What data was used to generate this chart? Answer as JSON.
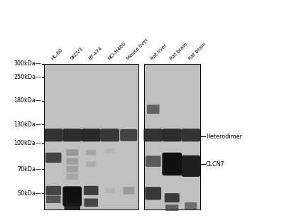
{
  "fig_bg": "#ffffff",
  "panel_bg": "#bebebe",
  "lane_labels": [
    "HL-60",
    "SKOV3",
    "BT-474",
    "NCI-H460",
    "Mouse liver",
    "Rat liver",
    "Rat brain",
    "Rat brain"
  ],
  "mw_markers": [
    "300kDa—",
    "250kDa—",
    "180kDa—",
    "130kDa—",
    "100kDa—",
    "70kDa—",
    "50kDa—"
  ],
  "mw_values": [
    300,
    250,
    180,
    130,
    100,
    70,
    50
  ],
  "annotations": [
    "Heterodimer",
    "CLCN7"
  ],
  "annotation_mw": [
    110,
    75
  ],
  "group1_lanes": 5,
  "group2_lanes": 3,
  "num_lanes": 8
}
